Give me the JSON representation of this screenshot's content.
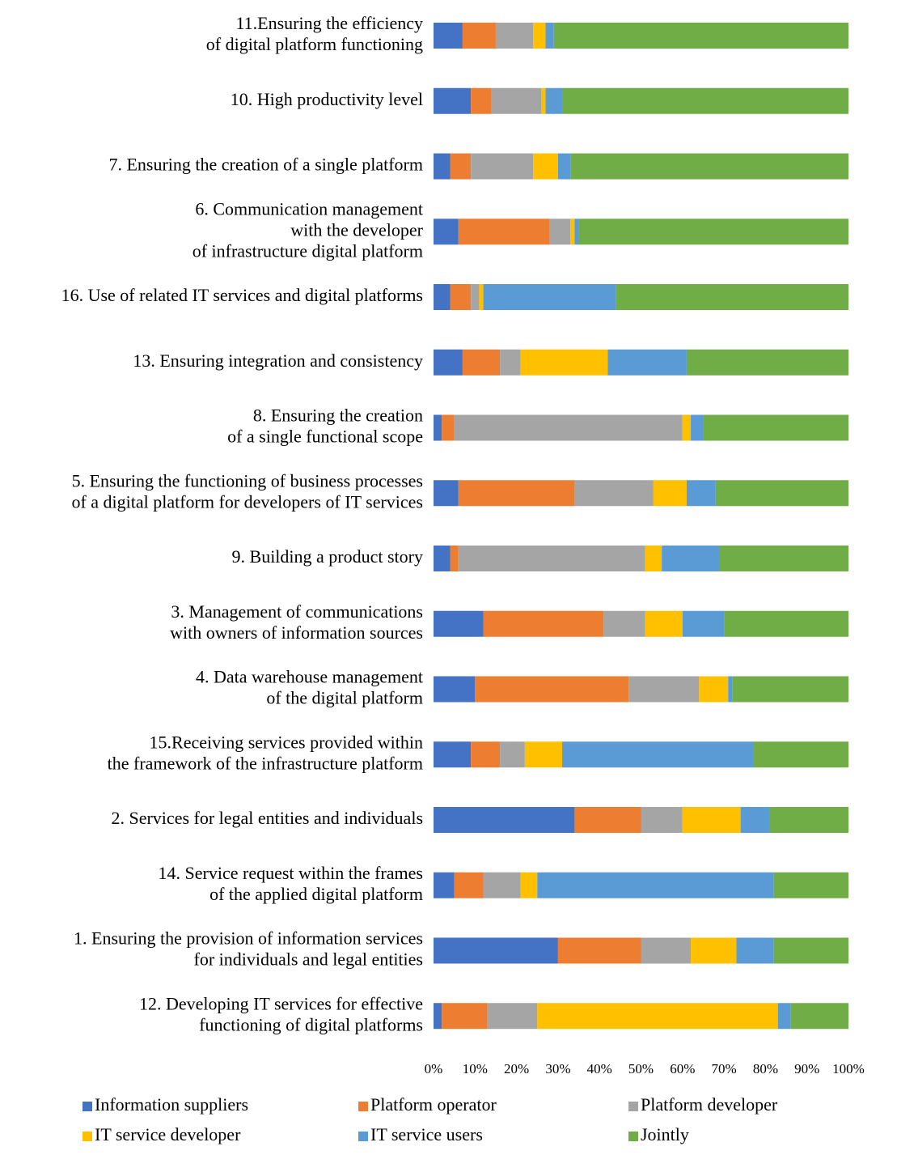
{
  "chart_data": {
    "type": "stacked-barh",
    "categories": [
      [
        "11.Ensuring the efficiency",
        "of digital platform functioning"
      ],
      [
        "10. High productivity level"
      ],
      [
        "7. Ensuring the creation of a single platform"
      ],
      [
        "6. Communication management",
        "with the developer",
        "of infrastructure digital platform"
      ],
      [
        "16. Use of related IT services and digital platforms"
      ],
      [
        "13. Ensuring integration and consistency"
      ],
      [
        "8. Ensuring the creation",
        "of a single functional scope"
      ],
      [
        "5. Ensuring the functioning of business processes",
        "of a digital platform for developers of IT services"
      ],
      [
        "9. Building a product story"
      ],
      [
        "3. Management of communications",
        "with owners of information sources"
      ],
      [
        "4. Data warehouse management",
        "of the digital platform"
      ],
      [
        "15.Receiving services provided within",
        "the framework of the infrastructure platform"
      ],
      [
        "2. Services for legal entities and individuals"
      ],
      [
        "14. Service request within the frames",
        "of the applied digital platform"
      ],
      [
        "1. Ensuring the provision of information services",
        "for individuals and legal entities"
      ],
      [
        "12. Developing IT services for effective",
        "functioning of digital platforms"
      ]
    ],
    "series": [
      {
        "name": "Information suppliers",
        "color": "#4472c4",
        "values": [
          7,
          9,
          4,
          6,
          4,
          7,
          2,
          6,
          4,
          12,
          10,
          9,
          34,
          5,
          30,
          2
        ]
      },
      {
        "name": "Platform operator",
        "color": "#ed7d31",
        "values": [
          8,
          5,
          5,
          22,
          5,
          9,
          3,
          28,
          2,
          29,
          37,
          7,
          16,
          7,
          20,
          11
        ]
      },
      {
        "name": "Platform developer",
        "color": "#a5a5a5",
        "values": [
          9,
          12,
          15,
          5,
          2,
          5,
          55,
          19,
          45,
          10,
          17,
          6,
          10,
          9,
          12,
          12
        ]
      },
      {
        "name": "IT service developer",
        "color": "#ffc000",
        "values": [
          3,
          1,
          6,
          1,
          1,
          21,
          2,
          8,
          4,
          9,
          7,
          9,
          14,
          4,
          11,
          58
        ]
      },
      {
        "name": "IT service users",
        "color": "#5b9bd5",
        "values": [
          2,
          4,
          3,
          1,
          32,
          19,
          3,
          7,
          14,
          10,
          1,
          46,
          7,
          57,
          9,
          3
        ]
      },
      {
        "name": "Jointly",
        "color": "#70ad47",
        "values": [
          71,
          69,
          67,
          65,
          56,
          39,
          35,
          32,
          31,
          30,
          28,
          23,
          19,
          18,
          18,
          14
        ]
      }
    ],
    "xlim": [
      0,
      100
    ],
    "xticks": [
      {
        "value": 0,
        "label": "0%"
      },
      {
        "value": 10,
        "label": "10%"
      },
      {
        "value": 20,
        "label": "20%"
      },
      {
        "value": 30,
        "label": "30%"
      },
      {
        "value": 40,
        "label": "40%"
      },
      {
        "value": 50,
        "label": "50%"
      },
      {
        "value": 60,
        "label": "60%"
      },
      {
        "value": 70,
        "label": "70%"
      },
      {
        "value": 80,
        "label": "80%"
      },
      {
        "value": 90,
        "label": "90%"
      },
      {
        "value": 100,
        "label": "100%"
      }
    ],
    "legend": "bottom"
  }
}
